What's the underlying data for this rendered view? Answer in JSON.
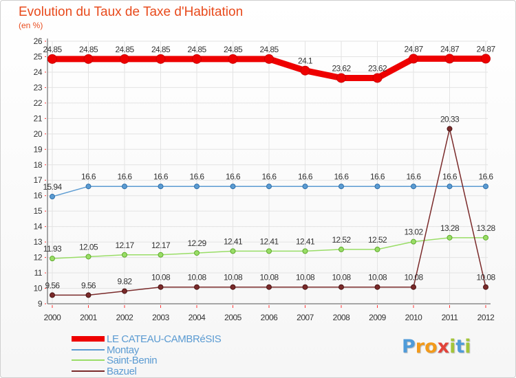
{
  "title": "Evolution du Taux de Taxe d'Habitation",
  "subtitle": "(en %)",
  "logo": {
    "text": "Proxiti",
    "letter_colors": [
      "#4f9bd9",
      "#f29a1b",
      "#f29a1b",
      "#e2433a",
      "#a3c53a",
      "#4f9bd9",
      "#a3c53a"
    ]
  },
  "chart_data": {
    "type": "line",
    "title": "Evolution du Taux de Taxe d'Habitation",
    "subtitle": "(en %)",
    "xlabel": "",
    "ylabel": "",
    "x": [
      "2000",
      "2001",
      "2002",
      "2003",
      "2004",
      "2005",
      "2006",
      "2007",
      "2008",
      "2009",
      "2010",
      "2011",
      "2012"
    ],
    "y_ticks": [
      "9",
      "10",
      "11",
      "12",
      "13",
      "14",
      "15",
      "16",
      "17",
      "18",
      "19",
      "20",
      "21",
      "22",
      "23",
      "24",
      "25",
      "26"
    ],
    "ylim": [
      9,
      26
    ],
    "grid": true,
    "legend_position": "bottom-left",
    "series": [
      {
        "name": "LE CATEAU-CAMBRéSIS",
        "color": "#ee0000",
        "values": [
          24.85,
          24.85,
          24.85,
          24.85,
          24.85,
          24.85,
          24.85,
          24.1,
          23.62,
          23.62,
          24.87,
          24.87,
          24.87
        ],
        "labels": [
          "24.85",
          "24.85",
          "24.85",
          "24.85",
          "24.85",
          "24.85",
          "24.85",
          "24.1",
          "23.62",
          "23.62",
          "24.87",
          "24.87",
          "24.87"
        ]
      },
      {
        "name": "Montay",
        "color": "#5b9bd2",
        "values": [
          15.94,
          16.6,
          16.6,
          16.6,
          16.6,
          16.6,
          16.6,
          16.6,
          16.6,
          16.6,
          16.6,
          16.6,
          16.6
        ],
        "labels": [
          "15.94",
          "16.6",
          "16.6",
          "16.6",
          "16.6",
          "16.6",
          "16.6",
          "16.6",
          "16.6",
          "16.6",
          "16.6",
          "16.6",
          "16.6"
        ]
      },
      {
        "name": "Saint-Benin",
        "color": "#99dd66",
        "values": [
          11.93,
          12.05,
          12.17,
          12.17,
          12.29,
          12.41,
          12.41,
          12.41,
          12.52,
          12.52,
          13.02,
          13.28,
          13.28
        ],
        "labels": [
          "11.93",
          "12.05",
          "12.17",
          "12.17",
          "12.29",
          "12.41",
          "12.41",
          "12.41",
          "12.52",
          "12.52",
          "13.02",
          "13.28",
          "13.28"
        ]
      },
      {
        "name": "Bazuel",
        "color": "#7a2a2a",
        "values": [
          9.56,
          9.56,
          9.82,
          10.08,
          10.08,
          10.08,
          10.08,
          10.08,
          10.08,
          10.08,
          10.08,
          20.33,
          10.08
        ],
        "labels": [
          "9.56",
          "9.56",
          "9.82",
          "10.08",
          "10.08",
          "10.08",
          "10.08",
          "10.08",
          "10.08",
          "10.08",
          "10.08",
          "20.33",
          "10.08"
        ]
      }
    ]
  }
}
